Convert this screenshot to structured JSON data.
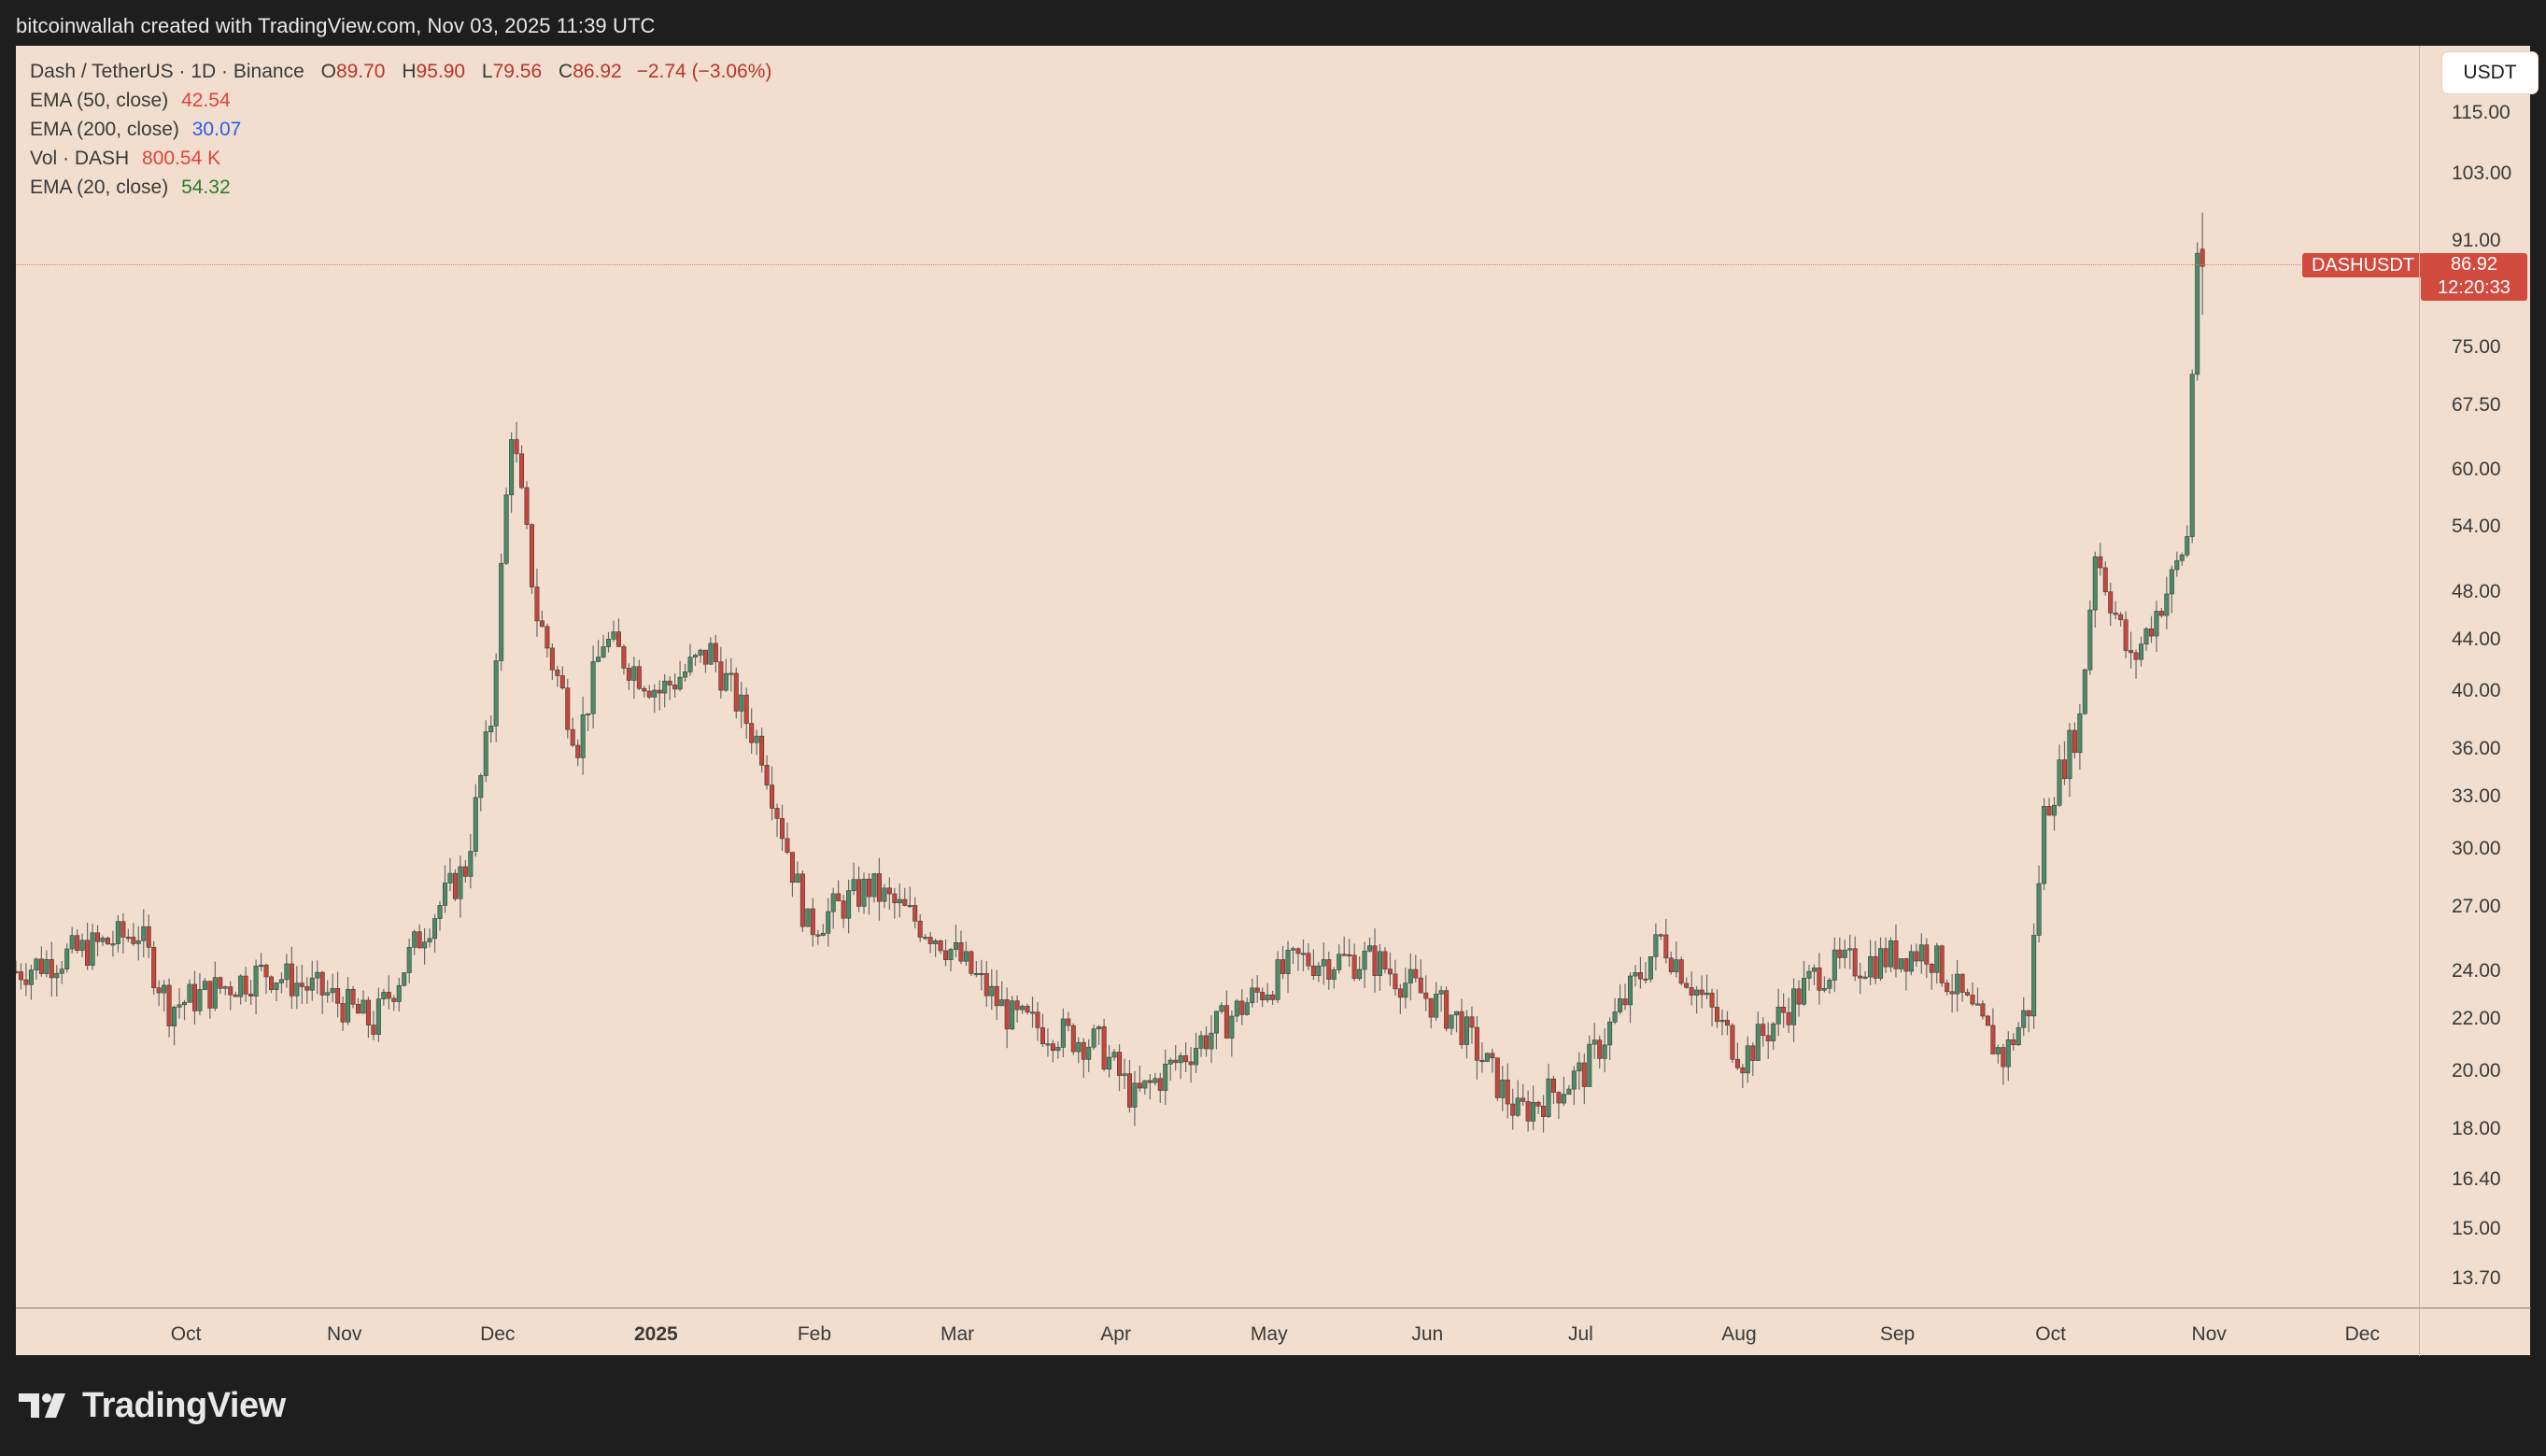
{
  "header": {
    "attribution": "bitcoinwallah created with TradingView.com, Nov 03, 2025 11:39 UTC"
  },
  "legend": {
    "symbol": "Dash / TetherUS · 1D · Binance",
    "ohlc": [
      {
        "k": "O",
        "v": "89.70"
      },
      {
        "k": "H",
        "v": "95.90"
      },
      {
        "k": "L",
        "v": "79.56"
      },
      {
        "k": "C",
        "v": "86.92"
      }
    ],
    "change": "−2.74 (−3.06%)",
    "indicators": [
      {
        "label": "EMA (50, close)",
        "value": "42.54",
        "color": "#e0443a"
      },
      {
        "label": "EMA (200, close)",
        "value": "30.07",
        "color": "#2d5bf0"
      },
      {
        "label": "Vol · DASH",
        "value": "800.54 K",
        "color": "#e0443a"
      },
      {
        "label": "EMA (20, close)",
        "value": "54.32",
        "color": "#2b7a2b"
      }
    ]
  },
  "toolbar": {
    "currency_button": "USDT"
  },
  "price_badge": {
    "symbol": "DASHUSDT",
    "price": "86.92",
    "countdown": "12:20:33"
  },
  "colors": {
    "up": "#4a8c66",
    "down": "#c9453b",
    "background": "#f1dece"
  },
  "chart_data": {
    "type": "candlestick",
    "symbol": "DASHUSDT",
    "interval": "1D",
    "y_scale": "log",
    "y_ticks": [
      "115.00",
      "103.00",
      "91.00",
      "75.00",
      "67.50",
      "60.00",
      "54.00",
      "48.00",
      "44.00",
      "40.00",
      "36.00",
      "33.00",
      "30.00",
      "27.00",
      "24.00",
      "22.00",
      "20.00",
      "18.00",
      "16.40",
      "15.00",
      "13.70"
    ],
    "x_ticks": [
      {
        "label": "Oct",
        "bold": false
      },
      {
        "label": "Nov",
        "bold": false
      },
      {
        "label": "Dec",
        "bold": false
      },
      {
        "label": "2025",
        "bold": true
      },
      {
        "label": "Feb",
        "bold": false
      },
      {
        "label": "Mar",
        "bold": false
      },
      {
        "label": "Apr",
        "bold": false
      },
      {
        "label": "May",
        "bold": false
      },
      {
        "label": "Jun",
        "bold": false
      },
      {
        "label": "Jul",
        "bold": false
      },
      {
        "label": "Aug",
        "bold": false
      },
      {
        "label": "Sep",
        "bold": false
      },
      {
        "label": "Oct",
        "bold": false
      },
      {
        "label": "Nov",
        "bold": false
      },
      {
        "label": "Dec",
        "bold": false
      }
    ],
    "approx_close_path": [
      {
        "date": "2024-09-01",
        "close": 24.0
      },
      {
        "date": "2024-09-15",
        "close": 25.0
      },
      {
        "date": "2024-09-25",
        "close": 25.8
      },
      {
        "date": "2024-10-01",
        "close": 22.5
      },
      {
        "date": "2024-10-20",
        "close": 24.0
      },
      {
        "date": "2024-11-01",
        "close": 23.0
      },
      {
        "date": "2024-11-10",
        "close": 21.8
      },
      {
        "date": "2024-11-20",
        "close": 26.0
      },
      {
        "date": "2024-11-28",
        "close": 29.0
      },
      {
        "date": "2024-12-03",
        "close": 38.0
      },
      {
        "date": "2024-12-07",
        "close": 65.0
      },
      {
        "date": "2024-12-12",
        "close": 46.0
      },
      {
        "date": "2024-12-20",
        "close": 36.5
      },
      {
        "date": "2024-12-25",
        "close": 44.0
      },
      {
        "date": "2025-01-05",
        "close": 40.0
      },
      {
        "date": "2025-01-15",
        "close": 43.0
      },
      {
        "date": "2025-01-25",
        "close": 36.0
      },
      {
        "date": "2025-02-03",
        "close": 26.0
      },
      {
        "date": "2025-02-15",
        "close": 28.0
      },
      {
        "date": "2025-03-01",
        "close": 25.5
      },
      {
        "date": "2025-03-15",
        "close": 22.0
      },
      {
        "date": "2025-04-01",
        "close": 21.0
      },
      {
        "date": "2025-04-08",
        "close": 19.0
      },
      {
        "date": "2025-04-20",
        "close": 21.0
      },
      {
        "date": "2025-05-10",
        "close": 24.5
      },
      {
        "date": "2025-05-25",
        "close": 24.5
      },
      {
        "date": "2025-06-10",
        "close": 22.0
      },
      {
        "date": "2025-06-22",
        "close": 18.5
      },
      {
        "date": "2025-07-05",
        "close": 20.0
      },
      {
        "date": "2025-07-20",
        "close": 25.5
      },
      {
        "date": "2025-08-05",
        "close": 20.5
      },
      {
        "date": "2025-08-20",
        "close": 24.0
      },
      {
        "date": "2025-09-10",
        "close": 25.0
      },
      {
        "date": "2025-09-25",
        "close": 20.5
      },
      {
        "date": "2025-09-30",
        "close": 22.5
      },
      {
        "date": "2025-10-03",
        "close": 32.0
      },
      {
        "date": "2025-10-10",
        "close": 38.0
      },
      {
        "date": "2025-10-13",
        "close": 52.0
      },
      {
        "date": "2025-10-20",
        "close": 42.0
      },
      {
        "date": "2025-10-28",
        "close": 49.0
      },
      {
        "date": "2025-10-31",
        "close": 53.0
      },
      {
        "date": "2025-11-01",
        "close": 72.0
      },
      {
        "date": "2025-11-02",
        "close": 89.7
      },
      {
        "date": "2025-11-03",
        "close": 86.92
      }
    ]
  }
}
